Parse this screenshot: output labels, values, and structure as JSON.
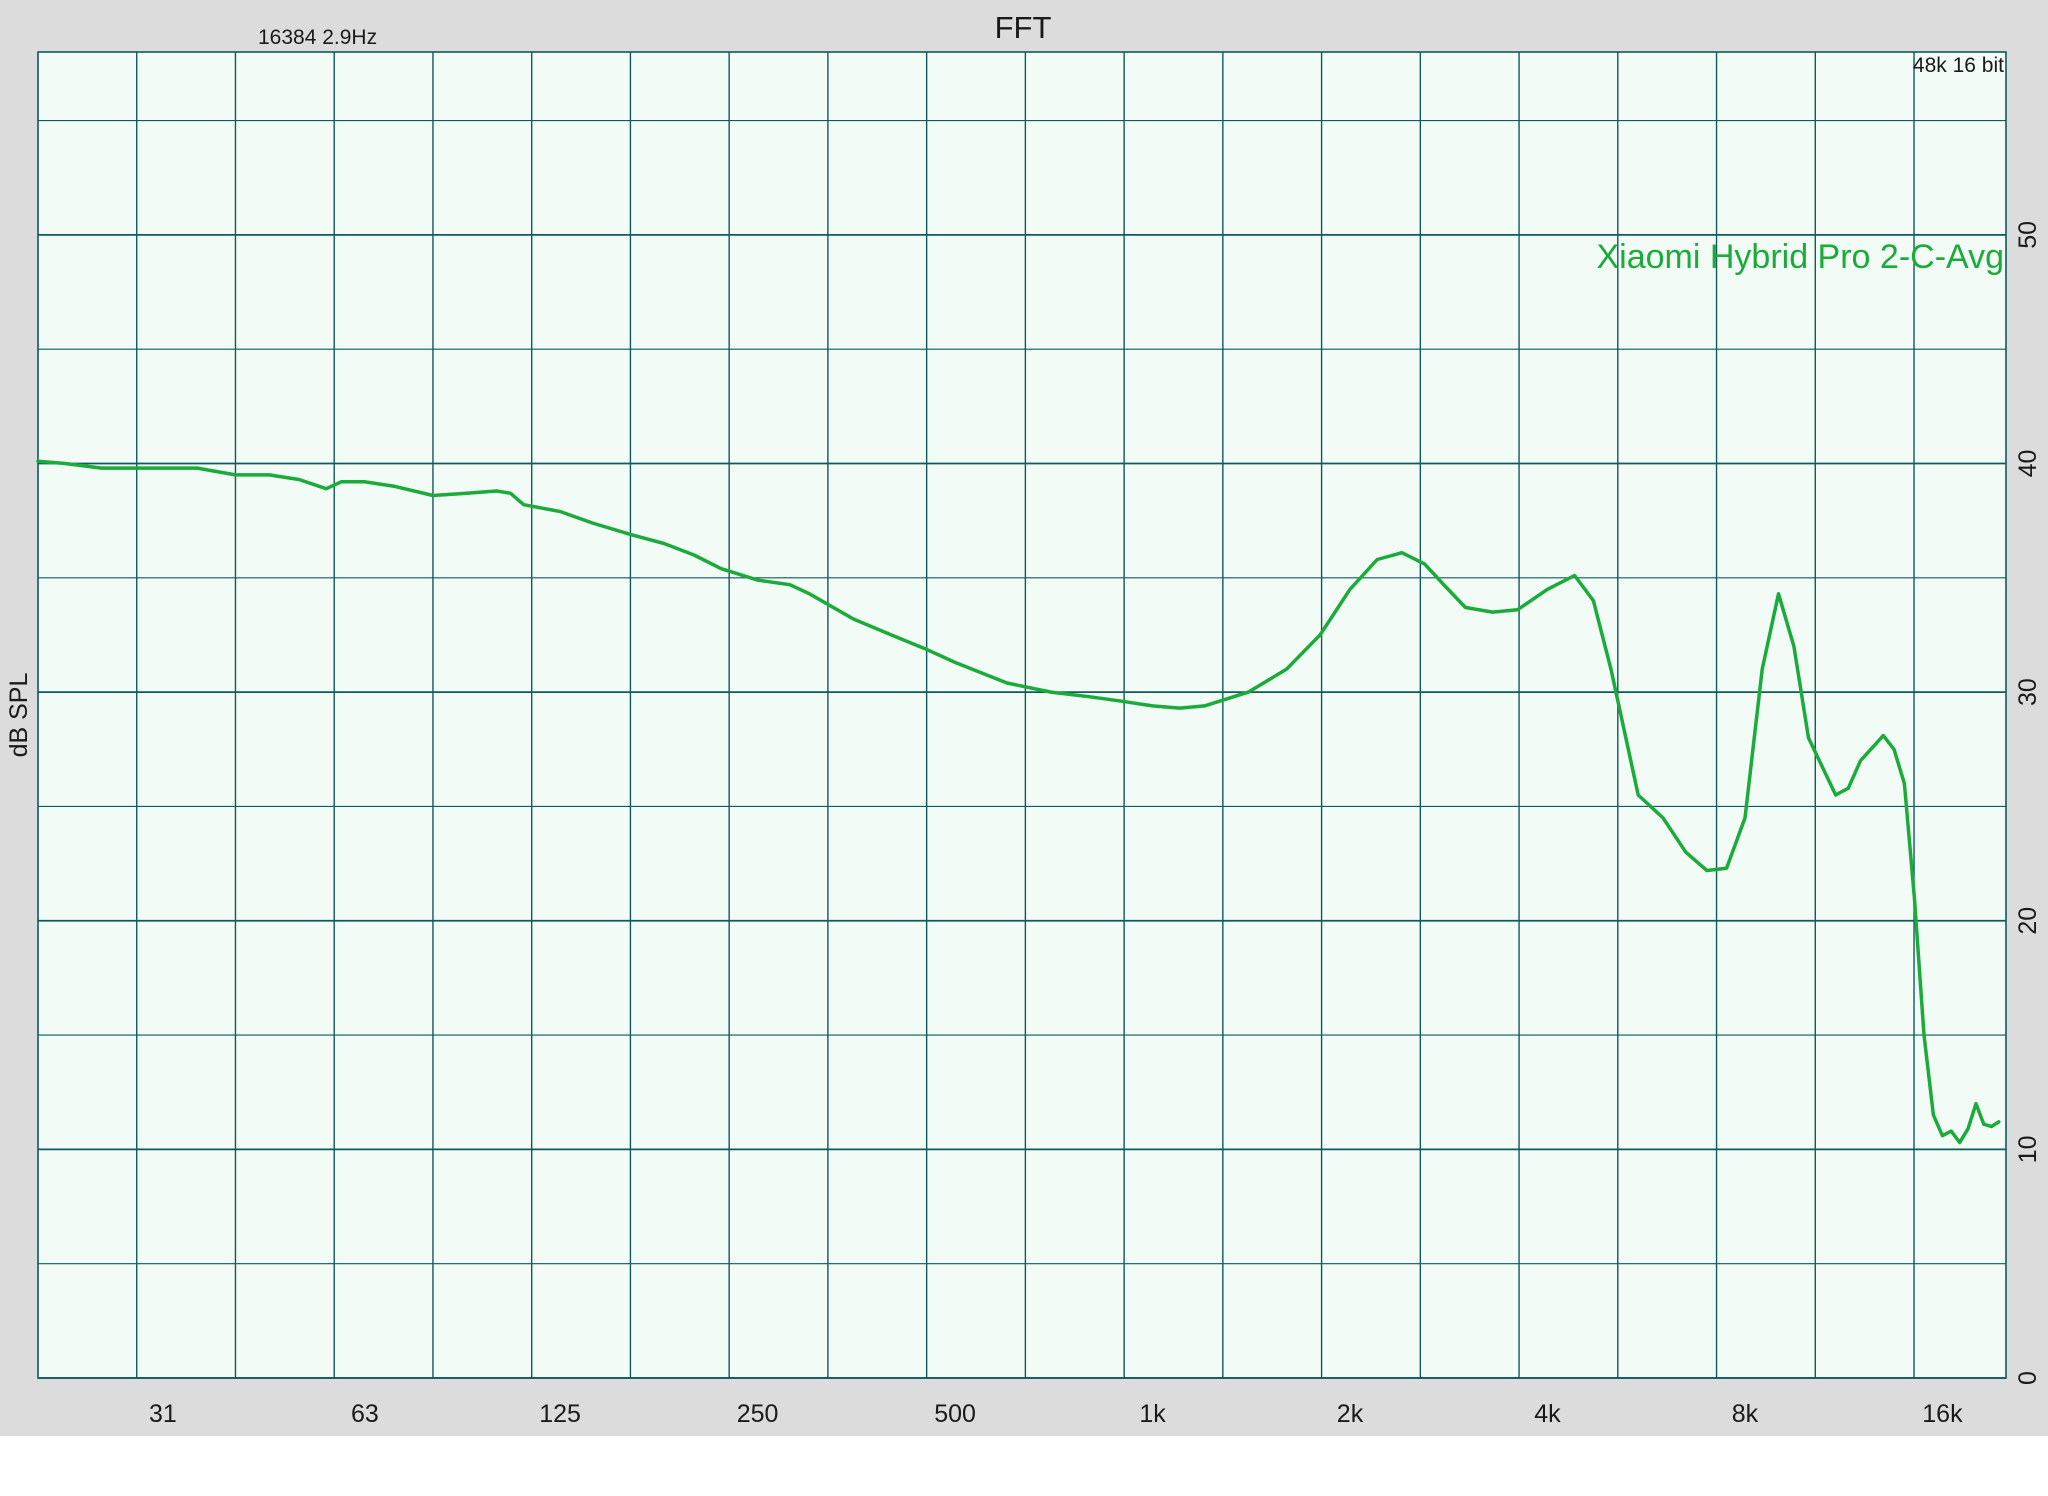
{
  "header": {
    "title": "FFT",
    "fft_info": "16384  2.9Hz",
    "sample_info": "48k 16 bit"
  },
  "colors": {
    "background": "#dcdcdc",
    "plot_bg": "#f2fbf6",
    "grid": "#0f5a5a",
    "curve": "#1aab3a"
  },
  "chart_data": {
    "type": "line",
    "title": "FFT",
    "xlabel": "",
    "ylabel": "dB SPL",
    "x_scale": "log",
    "xlim": [
      20,
      20000
    ],
    "ylim": [
      0,
      58
    ],
    "grid": true,
    "x_ticks": [
      {
        "value": 31,
        "label": "31"
      },
      {
        "value": 63,
        "label": "63"
      },
      {
        "value": 125,
        "label": "125"
      },
      {
        "value": 250,
        "label": "250"
      },
      {
        "value": 500,
        "label": "500"
      },
      {
        "value": 1000,
        "label": "1k"
      },
      {
        "value": 2000,
        "label": "2k"
      },
      {
        "value": 4000,
        "label": "4k"
      },
      {
        "value": 8000,
        "label": "8k"
      },
      {
        "value": 16000,
        "label": "16k"
      }
    ],
    "y_ticks": [
      {
        "value": 0,
        "label": "0"
      },
      {
        "value": 10,
        "label": "10"
      },
      {
        "value": 20,
        "label": "20"
      },
      {
        "value": 30,
        "label": "30"
      },
      {
        "value": 40,
        "label": "40"
      },
      {
        "value": 50,
        "label": "50"
      }
    ],
    "legend_position": "top-right",
    "series": [
      {
        "name": "Xiaomi Hybrid Pro 2-C-Avg",
        "x": [
          20,
          22,
          25,
          28,
          31,
          35,
          40,
          45,
          50,
          55,
          58,
          63,
          70,
          80,
          90,
          100,
          105,
          110,
          125,
          140,
          160,
          180,
          200,
          220,
          250,
          280,
          300,
          350,
          400,
          450,
          500,
          600,
          700,
          800,
          900,
          1000,
          1100,
          1200,
          1400,
          1600,
          1800,
          2000,
          2200,
          2400,
          2600,
          2800,
          3000,
          3300,
          3600,
          4000,
          4400,
          4700,
          5000,
          5500,
          6000,
          6500,
          7000,
          7500,
          8000,
          8500,
          9000,
          9500,
          10000,
          11000,
          11500,
          12000,
          13000,
          13500,
          14000,
          14500,
          15000,
          15500,
          16000,
          16500,
          17000,
          17500,
          18000,
          18500,
          19000,
          19500
        ],
        "y": [
          40.1,
          40.0,
          39.8,
          39.8,
          39.8,
          39.8,
          39.5,
          39.5,
          39.3,
          38.9,
          39.2,
          39.2,
          39.0,
          38.6,
          38.7,
          38.8,
          38.7,
          38.2,
          37.9,
          37.4,
          36.9,
          36.5,
          36.0,
          35.4,
          34.9,
          34.7,
          34.3,
          33.2,
          32.5,
          31.9,
          31.3,
          30.4,
          30.0,
          29.8,
          29.6,
          29.4,
          29.3,
          29.4,
          30.0,
          31.0,
          32.5,
          34.5,
          35.8,
          36.1,
          35.6,
          34.6,
          33.7,
          33.5,
          33.6,
          34.5,
          35.1,
          34.0,
          31.0,
          25.5,
          24.5,
          23.0,
          22.2,
          22.3,
          24.5,
          31.0,
          34.3,
          32.0,
          28.0,
          25.5,
          25.8,
          27.0,
          28.1,
          27.5,
          26.0,
          21.0,
          15.0,
          11.5,
          10.6,
          10.8,
          10.3,
          10.9,
          12.0,
          11.1,
          11.0,
          11.2
        ]
      }
    ]
  }
}
